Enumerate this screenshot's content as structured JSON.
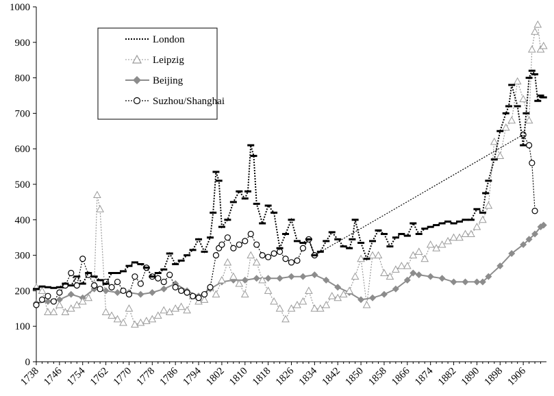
{
  "chart_data": {
    "type": "line",
    "title": "",
    "xlabel": "",
    "ylabel": "",
    "xlim": [
      1738,
      1914
    ],
    "ylim": [
      0,
      1000
    ],
    "yticks": [
      0,
      100,
      200,
      300,
      400,
      500,
      600,
      700,
      800,
      900,
      1000
    ],
    "xticks": [
      1738,
      1746,
      1754,
      1762,
      1770,
      1778,
      1786,
      1794,
      1802,
      1810,
      1818,
      1826,
      1834,
      1842,
      1850,
      1858,
      1866,
      1874,
      1882,
      1890,
      1898,
      1906
    ],
    "grid": false,
    "legend_position": "top-left",
    "series": [
      {
        "name": "London",
        "color": "#000000",
        "marker": "dash",
        "line": "dotted",
        "x": [
          1738,
          1740,
          1742,
          1744,
          1746,
          1748,
          1750,
          1752,
          1754,
          1756,
          1758,
          1760,
          1762,
          1764,
          1766,
          1768,
          1770,
          1772,
          1774,
          1776,
          1778,
          1780,
          1782,
          1784,
          1786,
          1788,
          1790,
          1792,
          1794,
          1796,
          1798,
          1799,
          1800,
          1801,
          1802,
          1804,
          1806,
          1808,
          1810,
          1811,
          1812,
          1813,
          1814,
          1816,
          1818,
          1820,
          1822,
          1824,
          1826,
          1828,
          1830,
          1832,
          1834,
          1836,
          1838,
          1840,
          1842,
          1844,
          1846,
          1847,
          1848,
          1850,
          1852,
          1854,
          1856,
          1858,
          1860,
          1862,
          1864,
          1866,
          1868,
          1870,
          1872,
          1874,
          1876,
          1878,
          1880,
          1882,
          1884,
          1886,
          1888,
          1890,
          1892,
          1893,
          1894,
          1896,
          1898,
          1900,
          1901,
          1902,
          1904,
          1906,
          1907,
          1908,
          1909,
          1910,
          1911,
          1912,
          1913
        ],
        "y": [
          205,
          212,
          210,
          208,
          210,
          220,
          215,
          240,
          220,
          250,
          240,
          230,
          220,
          250,
          250,
          255,
          270,
          280,
          275,
          265,
          240,
          250,
          260,
          305,
          275,
          285,
          300,
          315,
          345,
          310,
          350,
          420,
          535,
          510,
          380,
          400,
          450,
          480,
          460,
          480,
          610,
          580,
          445,
          390,
          440,
          420,
          320,
          360,
          400,
          340,
          335,
          345,
          300,
          310,
          340,
          365,
          345,
          325,
          320,
          345,
          400,
          335,
          290,
          340,
          370,
          360,
          325,
          350,
          360,
          355,
          390,
          360,
          375,
          380,
          385,
          390,
          395,
          390,
          395,
          400,
          400,
          430,
          420,
          475,
          510,
          570,
          650,
          700,
          720,
          780,
          720,
          610,
          700,
          800,
          820,
          810,
          735,
          750,
          745
        ],
        "mark_ys": []
      },
      {
        "name": "Leipzig",
        "color": "#9a9a9a",
        "marker": "triangle",
        "line": "dotted",
        "x": [
          1738,
          1740,
          1742,
          1744,
          1746,
          1748,
          1750,
          1752,
          1754,
          1756,
          1758,
          1759,
          1760,
          1762,
          1764,
          1766,
          1768,
          1770,
          1772,
          1774,
          1776,
          1778,
          1780,
          1782,
          1784,
          1786,
          1788,
          1790,
          1792,
          1794,
          1796,
          1798,
          1800,
          1802,
          1804,
          1806,
          1808,
          1810,
          1812,
          1814,
          1816,
          1818,
          1820,
          1822,
          1824,
          1826,
          1828,
          1830,
          1832,
          1834,
          1836,
          1838,
          1840,
          1842,
          1844,
          1846,
          1848,
          1850,
          1852,
          1854,
          1856,
          1858,
          1860,
          1862,
          1864,
          1866,
          1868,
          1870,
          1872,
          1874,
          1876,
          1878,
          1880,
          1882,
          1884,
          1886,
          1888,
          1890,
          1892,
          1894,
          1896,
          1898,
          1900,
          1902,
          1904,
          1906,
          1908,
          1909,
          1910,
          1911,
          1912,
          1913
        ],
        "y": [
          210,
          200,
          140,
          140,
          160,
          140,
          150,
          160,
          170,
          180,
          220,
          470,
          430,
          140,
          130,
          120,
          110,
          150,
          105,
          110,
          115,
          120,
          130,
          145,
          140,
          150,
          155,
          145,
          185,
          170,
          175,
          210,
          190,
          230,
          280,
          240,
          220,
          190,
          300,
          280,
          230,
          200,
          170,
          150,
          120,
          150,
          160,
          170,
          200,
          150,
          150,
          160,
          185,
          180,
          190,
          200,
          240,
          290,
          160,
          300,
          300,
          250,
          240,
          260,
          270,
          270,
          300,
          310,
          290,
          330,
          320,
          330,
          340,
          350,
          350,
          360,
          360,
          380,
          400,
          440,
          620,
          580,
          660,
          680,
          790,
          740,
          680,
          880,
          930,
          950,
          880,
          890
        ],
        "mark_ys": []
      },
      {
        "name": "Beijing",
        "color": "#8c8c8c",
        "marker": "diamond",
        "line": "solid",
        "x": [
          1738,
          1742,
          1746,
          1750,
          1754,
          1758,
          1762,
          1766,
          1770,
          1774,
          1778,
          1782,
          1786,
          1790,
          1794,
          1798,
          1802,
          1806,
          1810,
          1814,
          1818,
          1822,
          1826,
          1830,
          1834,
          1838,
          1842,
          1846,
          1850,
          1854,
          1858,
          1862,
          1866,
          1868,
          1870,
          1874,
          1878,
          1882,
          1886,
          1890,
          1892,
          1894,
          1898,
          1902,
          1906,
          1908,
          1910,
          1912,
          1913
        ],
        "y": [
          165,
          170,
          175,
          190,
          180,
          205,
          200,
          195,
          195,
          190,
          195,
          205,
          220,
          200,
          185,
          205,
          225,
          230,
          230,
          235,
          235,
          235,
          240,
          240,
          245,
          230,
          210,
          195,
          175,
          180,
          190,
          205,
          230,
          250,
          245,
          240,
          235,
          225,
          225,
          225,
          225,
          240,
          270,
          305,
          330,
          345,
          360,
          380,
          385
        ],
        "mark_ys": []
      },
      {
        "name": "Suzhou/Shanghai",
        "color": "#000000",
        "marker": "circle",
        "line": "dotted",
        "x": [
          1738,
          1740,
          1742,
          1744,
          1746,
          1748,
          1750,
          1752,
          1754,
          1756,
          1758,
          1760,
          1762,
          1764,
          1766,
          1768,
          1770,
          1772,
          1774,
          1776,
          1778,
          1780,
          1782,
          1784,
          1786,
          1788,
          1790,
          1792,
          1794,
          1796,
          1798,
          1800,
          1801,
          1802,
          1804,
          1806,
          1808,
          1810,
          1812,
          1814,
          1816,
          1818,
          1820,
          1822,
          1824,
          1826,
          1828,
          1830,
          1832,
          1834,
          1906,
          1908,
          1909,
          1910
        ],
        "y": [
          160,
          175,
          185,
          170,
          195,
          215,
          250,
          215,
          290,
          245,
          215,
          205,
          225,
          210,
          225,
          200,
          190,
          240,
          220,
          265,
          240,
          235,
          225,
          245,
          210,
          200,
          195,
          185,
          180,
          190,
          210,
          300,
          320,
          330,
          350,
          320,
          330,
          340,
          360,
          330,
          300,
          295,
          305,
          310,
          290,
          280,
          285,
          320,
          345,
          300,
          640,
          610,
          560,
          425
        ],
        "mark_ys": []
      }
    ]
  },
  "legend": {
    "entries": [
      "London",
      "Leipzig",
      "Beijing",
      "Suzhou/Shanghai"
    ]
  }
}
